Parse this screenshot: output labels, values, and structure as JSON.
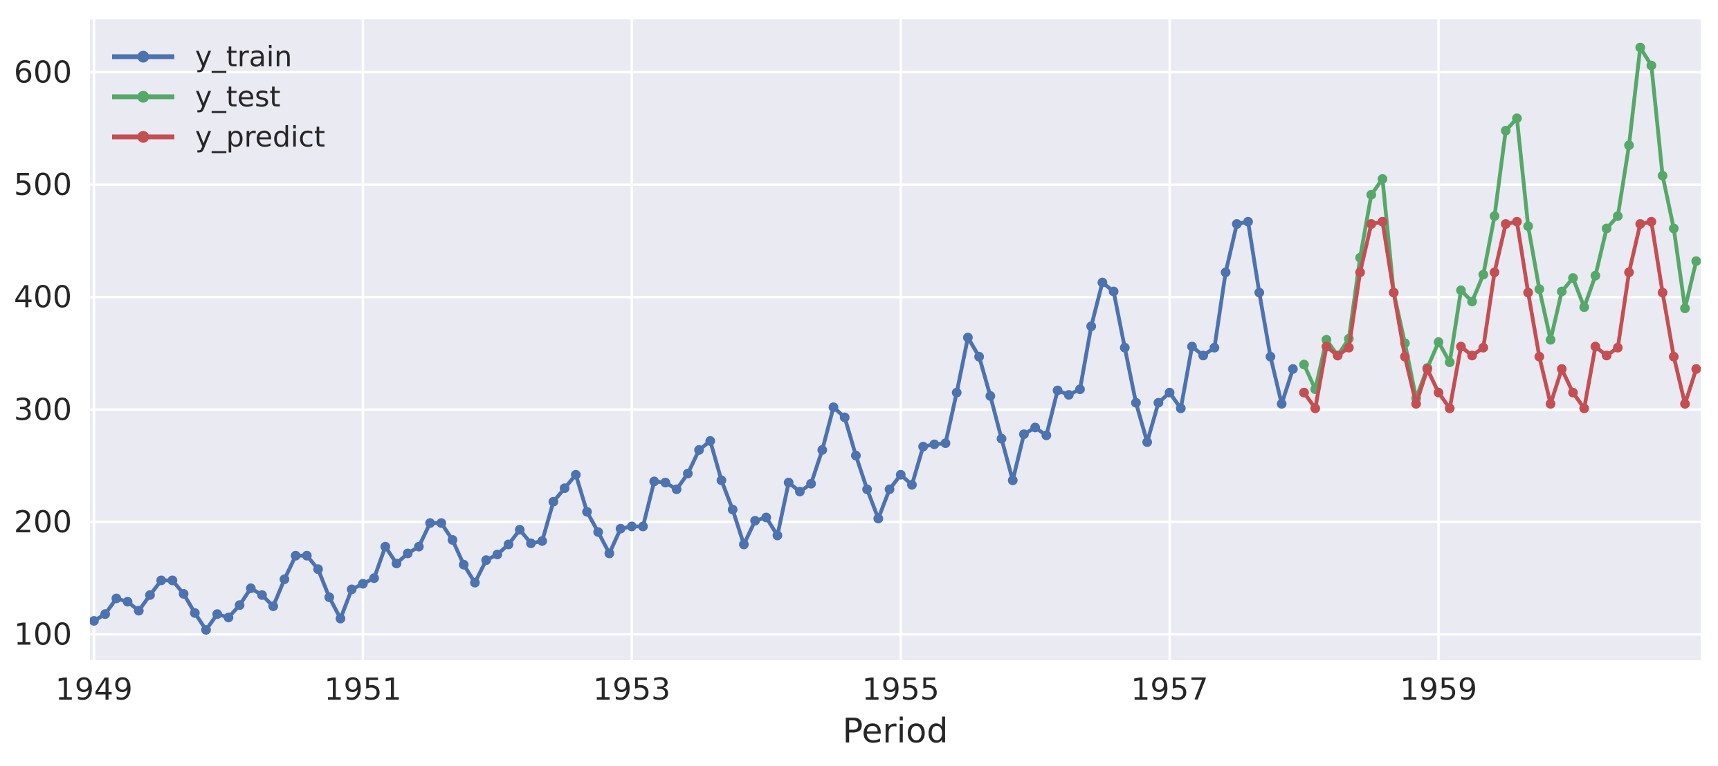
{
  "chart_data": {
    "type": "line",
    "title": "",
    "xlabel": "Period",
    "ylabel": "",
    "legend_position": "upper-left",
    "grid": true,
    "background_color": "#eaeaf2",
    "grid_color": "#ffffff",
    "text_color": "#262626",
    "xlim": [
      1948.97,
      1960.95
    ],
    "ylim": [
      77,
      647
    ],
    "x_ticks": [
      1949,
      1951,
      1953,
      1955,
      1957,
      1959
    ],
    "y_ticks": [
      100,
      200,
      300,
      400,
      500,
      600
    ],
    "series": [
      {
        "name": "y_train",
        "color": "#4c72b0",
        "start_year": 1949,
        "start_month": 1,
        "values": [
          112,
          118,
          132,
          129,
          121,
          135,
          148,
          148,
          136,
          119,
          104,
          118,
          115,
          126,
          141,
          135,
          125,
          149,
          170,
          170,
          158,
          133,
          114,
          140,
          145,
          150,
          178,
          163,
          172,
          178,
          199,
          199,
          184,
          162,
          146,
          166,
          171,
          180,
          193,
          181,
          183,
          218,
          230,
          242,
          209,
          191,
          172,
          194,
          196,
          196,
          236,
          235,
          229,
          243,
          264,
          272,
          237,
          211,
          180,
          201,
          204,
          188,
          235,
          227,
          234,
          264,
          302,
          293,
          259,
          229,
          203,
          229,
          242,
          233,
          267,
          269,
          270,
          315,
          364,
          347,
          312,
          274,
          237,
          278,
          284,
          277,
          317,
          313,
          318,
          374,
          413,
          405,
          355,
          306,
          271,
          306,
          315,
          301,
          356,
          348,
          355,
          422,
          465,
          467,
          404,
          347,
          305,
          336
        ]
      },
      {
        "name": "y_test",
        "color": "#55a868",
        "start_year": 1958,
        "start_month": 1,
        "values": [
          340,
          318,
          362,
          348,
          363,
          435,
          491,
          505,
          404,
          359,
          310,
          337,
          360,
          342,
          406,
          396,
          420,
          472,
          548,
          559,
          463,
          407,
          362,
          405,
          417,
          391,
          419,
          461,
          472,
          535,
          622,
          606,
          508,
          461,
          390,
          432
        ]
      },
      {
        "name": "y_predict",
        "color": "#c44e52",
        "start_year": 1958,
        "start_month": 1,
        "values": [
          315,
          301,
          356,
          348,
          355,
          422,
          465,
          467,
          404,
          347,
          305,
          336,
          315,
          301,
          356,
          348,
          355,
          422,
          465,
          467,
          404,
          347,
          305,
          336,
          315,
          301,
          356,
          348,
          355,
          422,
          465,
          467,
          404,
          347,
          305,
          336
        ]
      }
    ]
  }
}
